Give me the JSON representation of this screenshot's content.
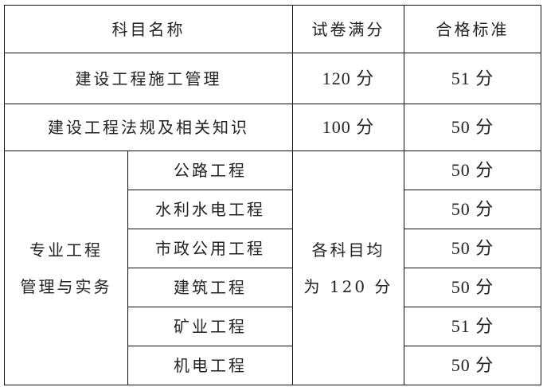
{
  "header": {
    "subject": "科目名称",
    "full_score": "试卷满分",
    "pass_score": "合格标准"
  },
  "rows": [
    {
      "subject": "建设工程施工管理",
      "full_score": "120 分",
      "pass_score": "51 分"
    },
    {
      "subject": "建设工程法规及相关知识",
      "full_score": "100 分",
      "pass_score": "50 分"
    }
  ],
  "professional": {
    "group_line1": "专业工程",
    "group_line2": "管理与实务",
    "full_line1": "各科目均",
    "full_line2": "为 120 分",
    "items": [
      {
        "subject": "公路工程",
        "pass_score": "50 分"
      },
      {
        "subject": "水利水电工程",
        "pass_score": "50 分"
      },
      {
        "subject": "市政公用工程",
        "pass_score": "50 分"
      },
      {
        "subject": "建筑工程",
        "pass_score": "50 分"
      },
      {
        "subject": "矿业工程",
        "pass_score": "51 分"
      },
      {
        "subject": "机电工程",
        "pass_score": "50 分"
      }
    ]
  }
}
